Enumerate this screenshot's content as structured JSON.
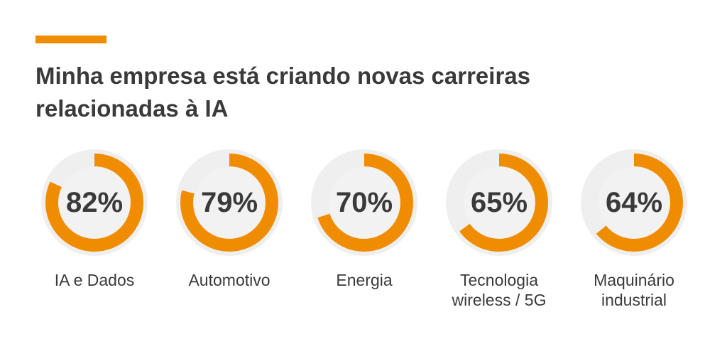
{
  "title_lines": [
    "Minha empresa está criando novas carreiras",
    "relacionadas à IA"
  ],
  "colors": {
    "accent": "#f08c00",
    "track": "#efefef",
    "text": "#3a3a3a"
  },
  "chart_data": {
    "type": "donut",
    "title": "Minha empresa está criando novas carreiras relacionadas à IA",
    "categories": [
      [
        "IA e Dados"
      ],
      [
        "Automotivo"
      ],
      [
        "Energia"
      ],
      [
        "Tecnologia",
        "wireless / 5G"
      ],
      [
        "Maquinário",
        "industrial"
      ]
    ],
    "values": [
      82,
      79,
      70,
      65,
      64
    ],
    "labels": [
      "82%",
      "79%",
      "70%",
      "65%",
      "64%"
    ],
    "max": 100,
    "unit": "%"
  }
}
